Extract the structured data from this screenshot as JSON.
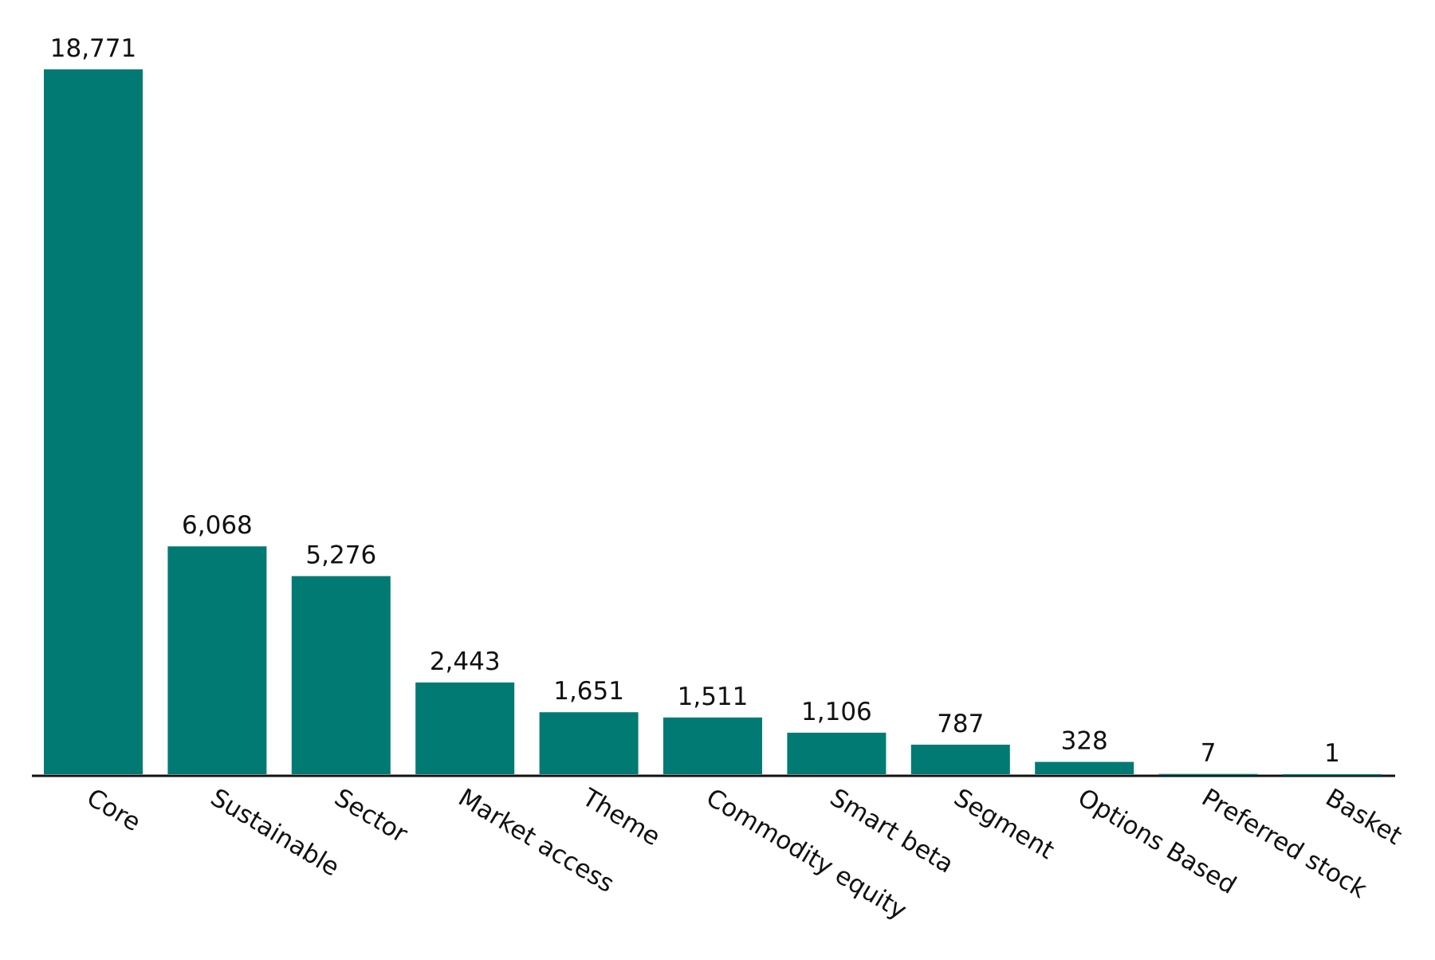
{
  "chart_data": {
    "type": "bar",
    "categories": [
      "Core",
      "Sustainable",
      "Sector",
      "Market access",
      "Theme",
      "Commodity equity",
      "Smart beta",
      "Segment",
      "Options Based",
      "Preferred stock",
      "Basket"
    ],
    "values": [
      18771,
      6068,
      5276,
      2443,
      1651,
      1511,
      1106,
      787,
      328,
      7,
      1
    ],
    "value_labels": [
      "18,771",
      "6,068",
      "5,276",
      "2,443",
      "1,651",
      "1,511",
      "1,106",
      "787",
      "328",
      "7",
      "1"
    ],
    "color": "#007a72"
  }
}
